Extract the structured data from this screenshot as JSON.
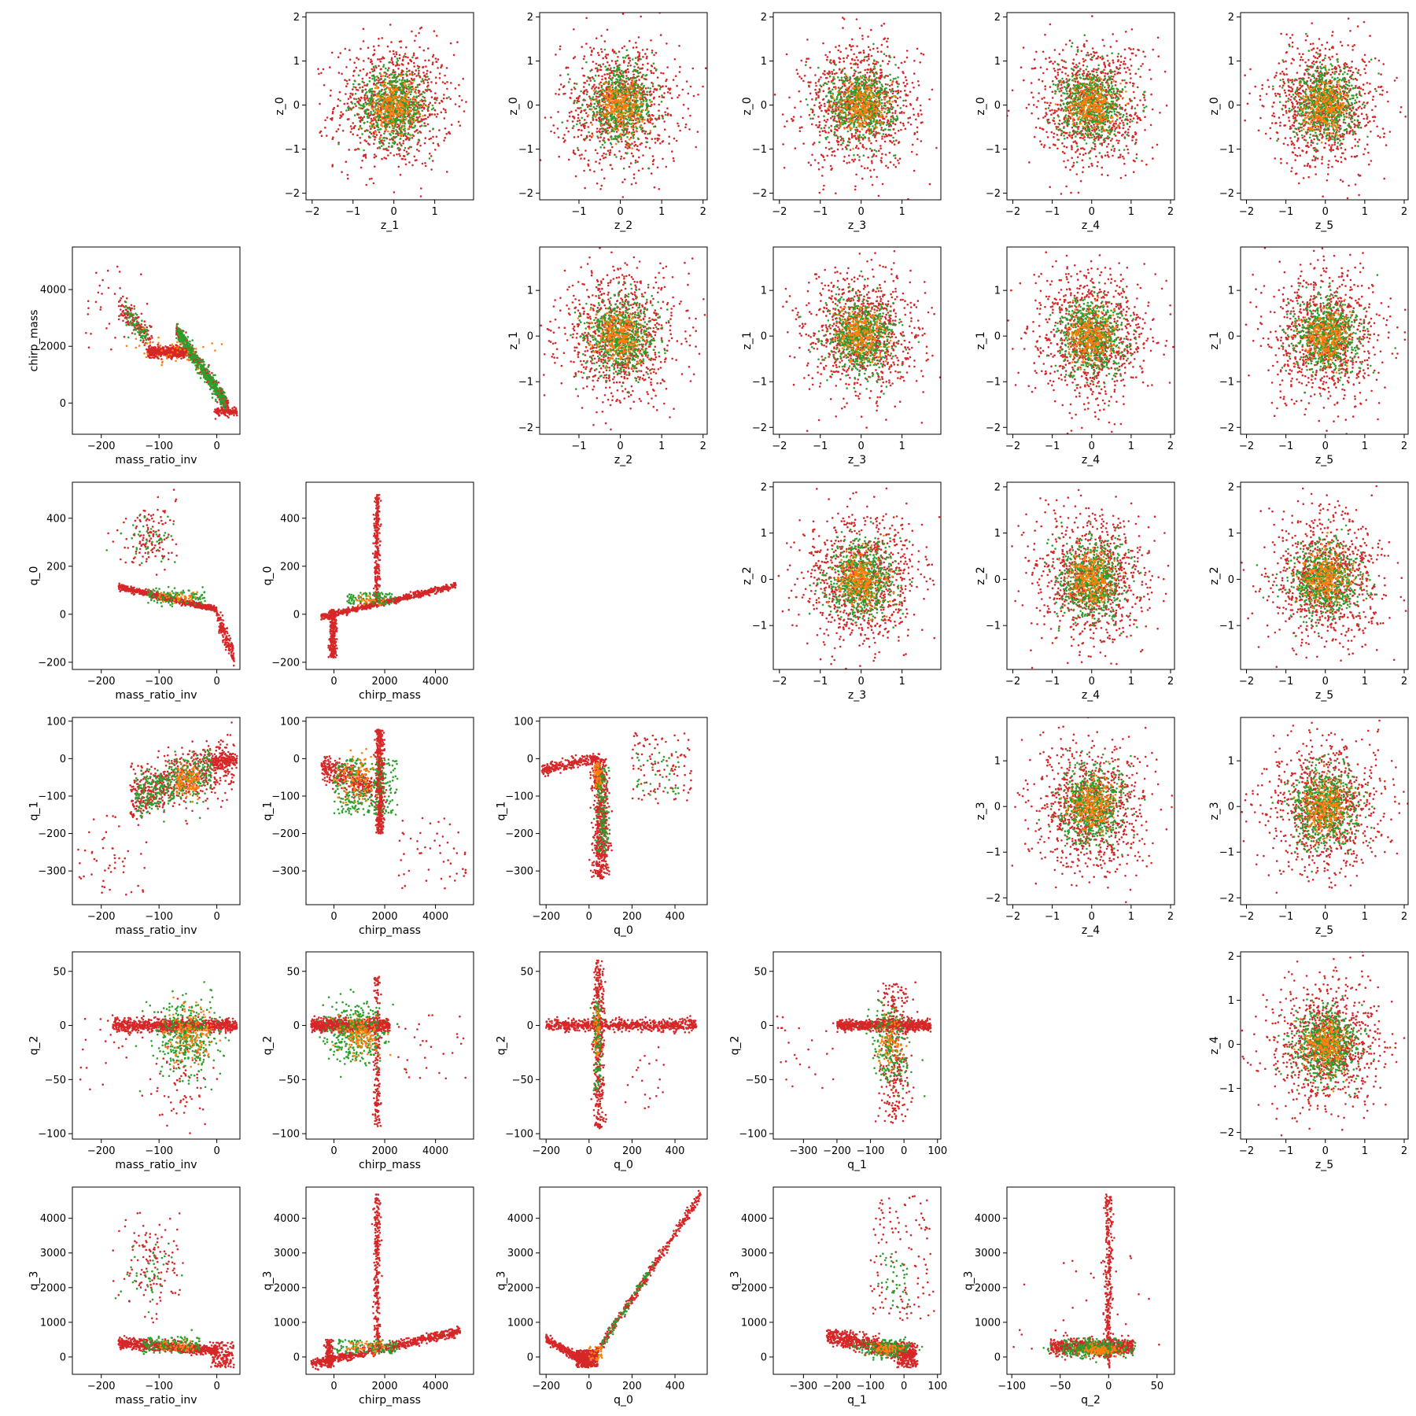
{
  "chart_data": {
    "type": "scatter",
    "layout": "lower-upper-triangle pair grid (6x6, empty diagonal)",
    "colors": {
      "red": "#d62728",
      "green": "#2ca02c",
      "orange": "#ff7f0e"
    },
    "variables": {
      "mass_ratio_inv": {
        "ticks": [
          -200,
          -100,
          0
        ],
        "lim": [
          -250,
          40
        ]
      },
      "chirp_mass": {
        "ticks": [
          0,
          2000,
          4000
        ],
        "lim": [
          -1100,
          5500
        ]
      },
      "q_0": {
        "ticks": [
          -200,
          0,
          200,
          400
        ],
        "lim": [
          -230,
          550
        ]
      },
      "q_1": {
        "ticks": [
          -300,
          -200,
          -100,
          0,
          100
        ],
        "lim": [
          -390,
          110
        ]
      },
      "q_2": {
        "ticks": [
          -100,
          -50,
          0,
          50
        ],
        "lim": [
          -105,
          68
        ]
      },
      "q_3": {
        "ticks": [
          0,
          1000,
          2000,
          3000,
          4000
        ],
        "lim": [
          -500,
          4900
        ]
      },
      "z_0": {
        "ticks": [
          -2,
          -1,
          0,
          1,
          2
        ],
        "lim": [
          -2.15,
          2.1
        ]
      },
      "z_1": {
        "ticks": [
          -2,
          -1,
          0,
          1
        ],
        "lim": [
          -2.15,
          1.95
        ]
      },
      "z_2": {
        "ticks": [
          -1,
          0,
          1,
          2
        ],
        "lim": [
          -1.95,
          2.1
        ]
      },
      "z_3": {
        "ticks": [
          -2,
          -1,
          0,
          1
        ],
        "lim": [
          -2.15,
          1.95
        ]
      },
      "z_4": {
        "ticks": [
          -2,
          -1,
          0,
          1,
          2
        ],
        "lim": [
          -2.15,
          2.1
        ]
      },
      "z_5": {
        "ticks": [
          -2,
          -1,
          0,
          1,
          2
        ],
        "lim": [
          -2.15,
          2.1
        ]
      }
    },
    "panels": [
      {
        "row": 0,
        "col": 1,
        "x": "z_1",
        "y": "z_0",
        "kind": "gaussian"
      },
      {
        "row": 0,
        "col": 2,
        "x": "z_2",
        "y": "z_0",
        "kind": "gaussian"
      },
      {
        "row": 0,
        "col": 3,
        "x": "z_3",
        "y": "z_0",
        "kind": "gaussian"
      },
      {
        "row": 0,
        "col": 4,
        "x": "z_4",
        "y": "z_0",
        "kind": "gaussian"
      },
      {
        "row": 0,
        "col": 5,
        "x": "z_5",
        "y": "z_0",
        "kind": "gaussian"
      },
      {
        "row": 1,
        "col": 0,
        "x": "mass_ratio_inv",
        "y": "chirp_mass",
        "kind": "mr_cm"
      },
      {
        "row": 1,
        "col": 2,
        "x": "z_2",
        "y": "z_1",
        "kind": "gaussian"
      },
      {
        "row": 1,
        "col": 3,
        "x": "z_3",
        "y": "z_1",
        "kind": "gaussian"
      },
      {
        "row": 1,
        "col": 4,
        "x": "z_4",
        "y": "z_1",
        "kind": "gaussian"
      },
      {
        "row": 1,
        "col": 5,
        "x": "z_5",
        "y": "z_1",
        "kind": "gaussian"
      },
      {
        "row": 2,
        "col": 0,
        "x": "mass_ratio_inv",
        "y": "q_0",
        "kind": "mr_q0"
      },
      {
        "row": 2,
        "col": 1,
        "x": "chirp_mass",
        "y": "q_0",
        "kind": "cm_q0"
      },
      {
        "row": 2,
        "col": 3,
        "x": "z_3",
        "y": "z_2",
        "kind": "gaussian"
      },
      {
        "row": 2,
        "col": 4,
        "x": "z_4",
        "y": "z_2",
        "kind": "gaussian"
      },
      {
        "row": 2,
        "col": 5,
        "x": "z_5",
        "y": "z_2",
        "kind": "gaussian"
      },
      {
        "row": 3,
        "col": 0,
        "x": "mass_ratio_inv",
        "y": "q_1",
        "kind": "mr_q1"
      },
      {
        "row": 3,
        "col": 1,
        "x": "chirp_mass",
        "y": "q_1",
        "kind": "cm_q1"
      },
      {
        "row": 3,
        "col": 2,
        "x": "q_0",
        "y": "q_1",
        "kind": "q0_q1"
      },
      {
        "row": 3,
        "col": 4,
        "x": "z_4",
        "y": "z_3",
        "kind": "gaussian"
      },
      {
        "row": 3,
        "col": 5,
        "x": "z_5",
        "y": "z_3",
        "kind": "gaussian"
      },
      {
        "row": 4,
        "col": 0,
        "x": "mass_ratio_inv",
        "y": "q_2",
        "kind": "mr_q2"
      },
      {
        "row": 4,
        "col": 1,
        "x": "chirp_mass",
        "y": "q_2",
        "kind": "cm_q2"
      },
      {
        "row": 4,
        "col": 2,
        "x": "q_0",
        "y": "q_2",
        "kind": "q0_q2"
      },
      {
        "row": 4,
        "col": 3,
        "x": "q_1",
        "y": "q_2",
        "kind": "q1_q2"
      },
      {
        "row": 4,
        "col": 5,
        "x": "z_5",
        "y": "z_4",
        "kind": "gaussian"
      },
      {
        "row": 5,
        "col": 0,
        "x": "mass_ratio_inv",
        "y": "q_3",
        "kind": "mr_q3"
      },
      {
        "row": 5,
        "col": 1,
        "x": "chirp_mass",
        "y": "q_3",
        "kind": "cm_q3"
      },
      {
        "row": 5,
        "col": 2,
        "x": "q_0",
        "y": "q_3",
        "kind": "q0_q3"
      },
      {
        "row": 5,
        "col": 3,
        "x": "q_1",
        "y": "q_3",
        "kind": "q1_q3"
      },
      {
        "row": 5,
        "col": 4,
        "x": "q_2",
        "y": "q_3",
        "kind": "q2_q3"
      }
    ],
    "grid": false,
    "legend": "none"
  }
}
